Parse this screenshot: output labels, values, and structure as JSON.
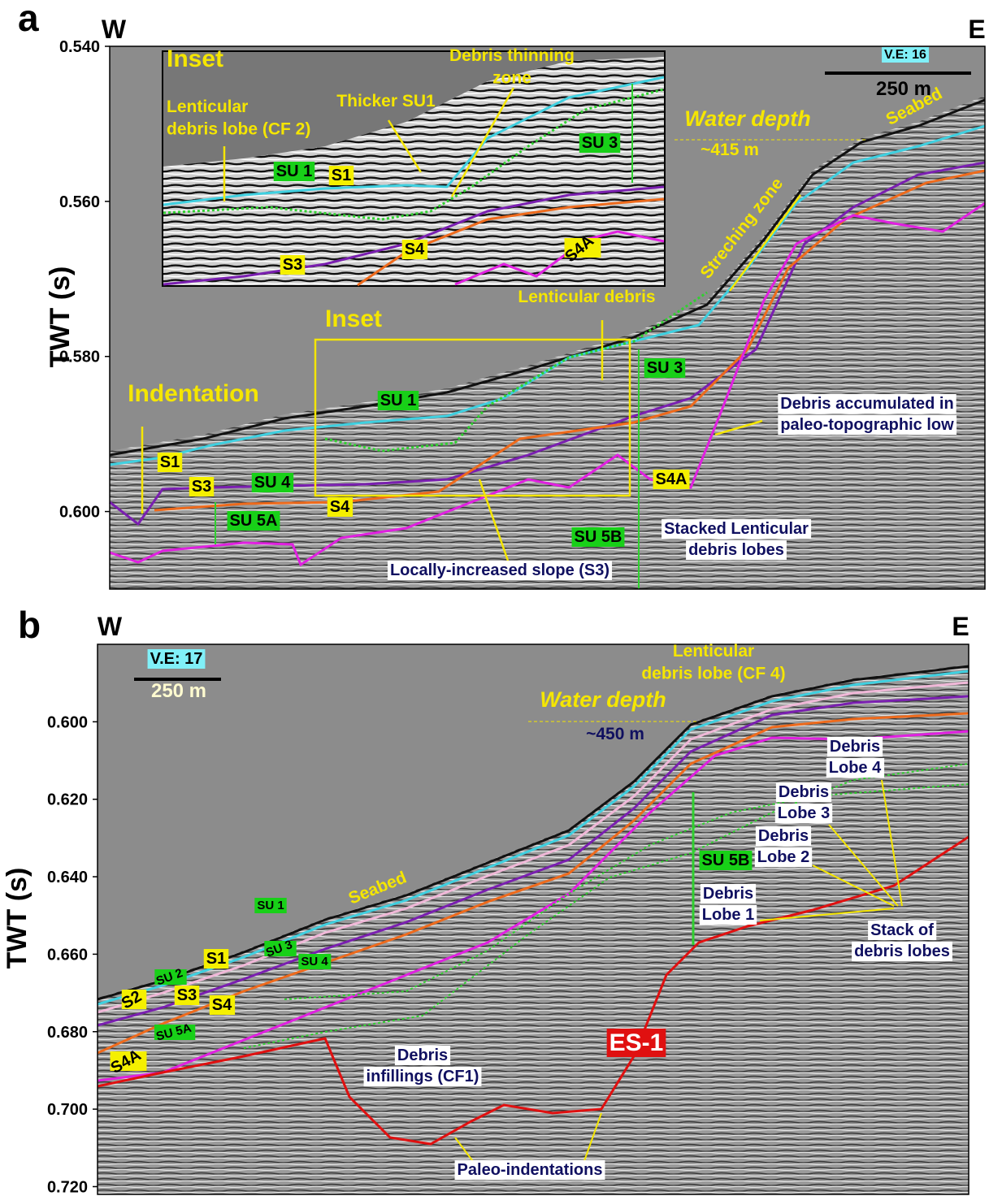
{
  "panels": [
    {
      "label": "a",
      "west": "W",
      "east": "E",
      "axis_label": "TWT (s)",
      "ylim": [
        0.54,
        0.61
      ],
      "yticks": [
        {
          "value": 0.54,
          "label": "0.540"
        },
        {
          "value": 0.56,
          "label": "0.560"
        },
        {
          "value": 0.58,
          "label": "0.580"
        },
        {
          "value": 0.6,
          "label": "0.600"
        }
      ],
      "ve": "V.E: 16",
      "scale": "250 m",
      "annotations": [
        [
          "Inset"
        ],
        [
          "Debris thinning",
          "zone"
        ],
        [
          "Thicker SU1"
        ],
        [
          "Lenticular",
          "debris lobe (CF 2)"
        ],
        [
          "SU 1"
        ],
        [
          "S1"
        ],
        [
          "SU 3"
        ],
        [
          "S3"
        ],
        [
          "S4"
        ],
        [
          "S4A"
        ],
        [
          "Water depth"
        ],
        [
          "~415 m"
        ],
        [
          "Seabed"
        ],
        [
          "Streching zone"
        ],
        [
          "Lenticular debris"
        ],
        [
          "Inset"
        ],
        [
          "SU 3"
        ],
        [
          "Indentation"
        ],
        [
          "SU 1"
        ],
        [
          "Debris accumulated in",
          "paleo-topographic low"
        ],
        [
          "S1"
        ],
        [
          "S3"
        ],
        [
          "SU 4"
        ],
        [
          "S4A"
        ],
        [
          "S4"
        ],
        [
          "SU 5A"
        ],
        [
          "SU 5B"
        ],
        [
          "Stacked Lenticular",
          "debris lobes"
        ],
        [
          "Locally-increased slope (S3)"
        ]
      ]
    },
    {
      "label": "b",
      "west": "W",
      "east": "E",
      "axis_label": "TWT (s)",
      "ylim": [
        0.58,
        0.722
      ],
      "yticks": [
        {
          "value": 0.6,
          "label": "0.600"
        },
        {
          "value": 0.62,
          "label": "0.620"
        },
        {
          "value": 0.64,
          "label": "0.640"
        },
        {
          "value": 0.66,
          "label": "0.660"
        },
        {
          "value": 0.68,
          "label": "0.680"
        },
        {
          "value": 0.7,
          "label": "0.700"
        },
        {
          "value": 0.72,
          "label": "0.720"
        }
      ],
      "ve": "V.E: 17",
      "scale": "250 m",
      "annotations": [
        [
          "Lenticular",
          "debris lobe (CF 4)"
        ],
        [
          "Water depth"
        ],
        [
          "~450 m"
        ],
        [
          "Debris",
          "Lobe 4"
        ],
        [
          "Debris",
          "Lobe 3"
        ],
        [
          "Debris",
          "Lobe 2"
        ],
        [
          "SU 5B"
        ],
        [
          "Debris",
          "Lobe 1"
        ],
        [
          "Stack of",
          "debris lobes"
        ],
        [
          "Seabed"
        ],
        [
          "SU 1"
        ],
        [
          "SU 3"
        ],
        [
          "SU 4"
        ],
        [
          "SU 2"
        ],
        [
          "S1"
        ],
        [
          "S2"
        ],
        [
          "S3"
        ],
        [
          "S4"
        ],
        [
          "SU 5A"
        ],
        [
          "S4A"
        ],
        [
          "ES-1"
        ],
        [
          "Debris",
          "infillings (CF1)"
        ],
        [
          "Paleo-indentations"
        ]
      ]
    }
  ]
}
